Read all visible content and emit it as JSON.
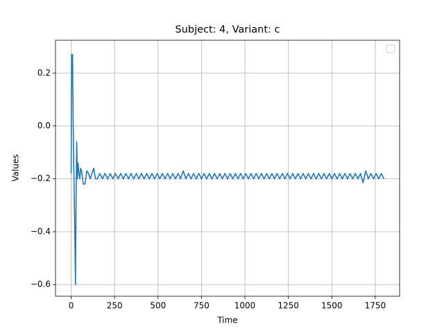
{
  "chart_data": {
    "type": "line",
    "title": "Subject: 4, Variant: c",
    "x_label": "Time",
    "y_label": "Values",
    "x": [
      0,
      3,
      8,
      12,
      15,
      20,
      25,
      28,
      32,
      36,
      40,
      45,
      50,
      55,
      60,
      70,
      80,
      90,
      100,
      110,
      120,
      130,
      140,
      150,
      165,
      180,
      195,
      210,
      225,
      240,
      255,
      270,
      285,
      300,
      315,
      330,
      345,
      360,
      375,
      390,
      405,
      420,
      435,
      450,
      465,
      480,
      495,
      510,
      525,
      540,
      555,
      570,
      585,
      600,
      615,
      630,
      645,
      660,
      675,
      690,
      705,
      720,
      735,
      750,
      765,
      780,
      795,
      810,
      825,
      840,
      855,
      870,
      885,
      900,
      915,
      930,
      945,
      960,
      975,
      990,
      1005,
      1020,
      1035,
      1050,
      1065,
      1080,
      1095,
      1110,
      1125,
      1140,
      1155,
      1170,
      1185,
      1200,
      1215,
      1230,
      1245,
      1260,
      1275,
      1290,
      1305,
      1320,
      1335,
      1350,
      1365,
      1380,
      1395,
      1410,
      1425,
      1440,
      1455,
      1470,
      1485,
      1500,
      1515,
      1530,
      1545,
      1560,
      1575,
      1590,
      1605,
      1620,
      1635,
      1650,
      1665,
      1680,
      1695,
      1710,
      1725,
      1740,
      1755,
      1770,
      1785,
      1800
    ],
    "series": [
      {
        "color": "#1f77b4",
        "values": [
          -0.18,
          0.27,
          0.27,
          0.0,
          -0.15,
          -0.35,
          -0.6,
          -0.3,
          -0.06,
          -0.2,
          -0.14,
          -0.18,
          -0.2,
          -0.16,
          -0.17,
          -0.22,
          -0.22,
          -0.17,
          -0.18,
          -0.2,
          -0.18,
          -0.16,
          -0.2,
          -0.2,
          -0.18,
          -0.2,
          -0.18,
          -0.2,
          -0.18,
          -0.2,
          -0.18,
          -0.2,
          -0.18,
          -0.2,
          -0.18,
          -0.2,
          -0.18,
          -0.2,
          -0.18,
          -0.2,
          -0.18,
          -0.2,
          -0.18,
          -0.2,
          -0.18,
          -0.2,
          -0.18,
          -0.2,
          -0.18,
          -0.2,
          -0.18,
          -0.2,
          -0.18,
          -0.2,
          -0.18,
          -0.2,
          -0.17,
          -0.2,
          -0.18,
          -0.2,
          -0.18,
          -0.2,
          -0.18,
          -0.2,
          -0.18,
          -0.2,
          -0.18,
          -0.2,
          -0.18,
          -0.2,
          -0.18,
          -0.2,
          -0.18,
          -0.2,
          -0.18,
          -0.2,
          -0.18,
          -0.2,
          -0.18,
          -0.2,
          -0.18,
          -0.2,
          -0.18,
          -0.2,
          -0.18,
          -0.2,
          -0.18,
          -0.2,
          -0.18,
          -0.2,
          -0.18,
          -0.2,
          -0.18,
          -0.2,
          -0.18,
          -0.2,
          -0.18,
          -0.2,
          -0.18,
          -0.2,
          -0.18,
          -0.2,
          -0.18,
          -0.2,
          -0.18,
          -0.2,
          -0.18,
          -0.2,
          -0.18,
          -0.2,
          -0.18,
          -0.2,
          -0.18,
          -0.2,
          -0.18,
          -0.2,
          -0.18,
          -0.2,
          -0.18,
          -0.2,
          -0.18,
          -0.2,
          -0.18,
          -0.2,
          -0.18,
          -0.215,
          -0.17,
          -0.2,
          -0.18,
          -0.2,
          -0.18,
          -0.2,
          -0.18,
          -0.2
        ]
      }
    ],
    "xlim": [
      -90,
      1890
    ],
    "xticks": [
      0,
      250,
      500,
      750,
      1000,
      1250,
      1500,
      1750
    ],
    "ylim": [
      -0.644,
      0.324
    ],
    "yticks": [
      {
        "value": -0.6,
        "label": "−0.6"
      },
      {
        "value": -0.4,
        "label": "−0.4"
      },
      {
        "value": -0.2,
        "label": "−0.2"
      },
      {
        "value": 0,
        "label": "0.0"
      },
      0.2
    ],
    "grid": true
  }
}
